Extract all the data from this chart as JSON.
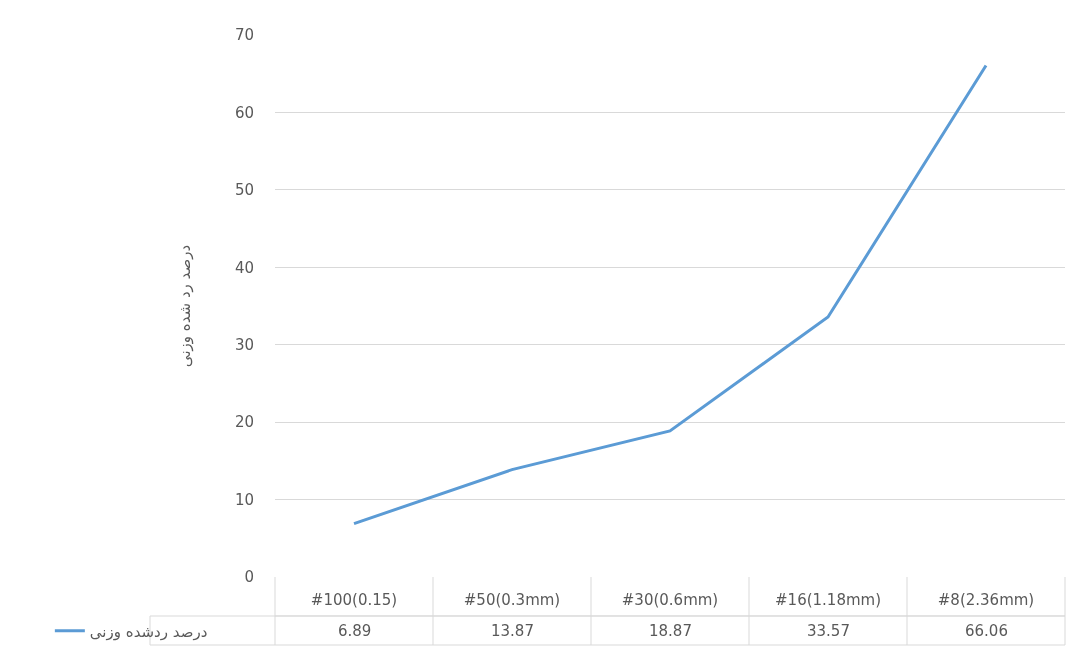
{
  "chart_data": {
    "type": "line",
    "ylabel": "درصد رد شده وزنی",
    "categories": [
      "#100(0.15)",
      "#50(0.3mm)",
      "#30(0.6mm)",
      "#16(1.18mm)",
      "#8(2.36mm)"
    ],
    "series": [
      {
        "name": "درصد ردشده وزنی",
        "color": "#5b9bd5",
        "values": [
          6.89,
          13.87,
          18.87,
          33.57,
          66.06
        ]
      }
    ],
    "ylim": [
      0,
      70
    ],
    "yticks": [
      0,
      10,
      20,
      30,
      40,
      50,
      60,
      70
    ],
    "grid": "y",
    "legend": "bottom left",
    "data_labels": true,
    "marker": "none",
    "line_style": "solid"
  }
}
